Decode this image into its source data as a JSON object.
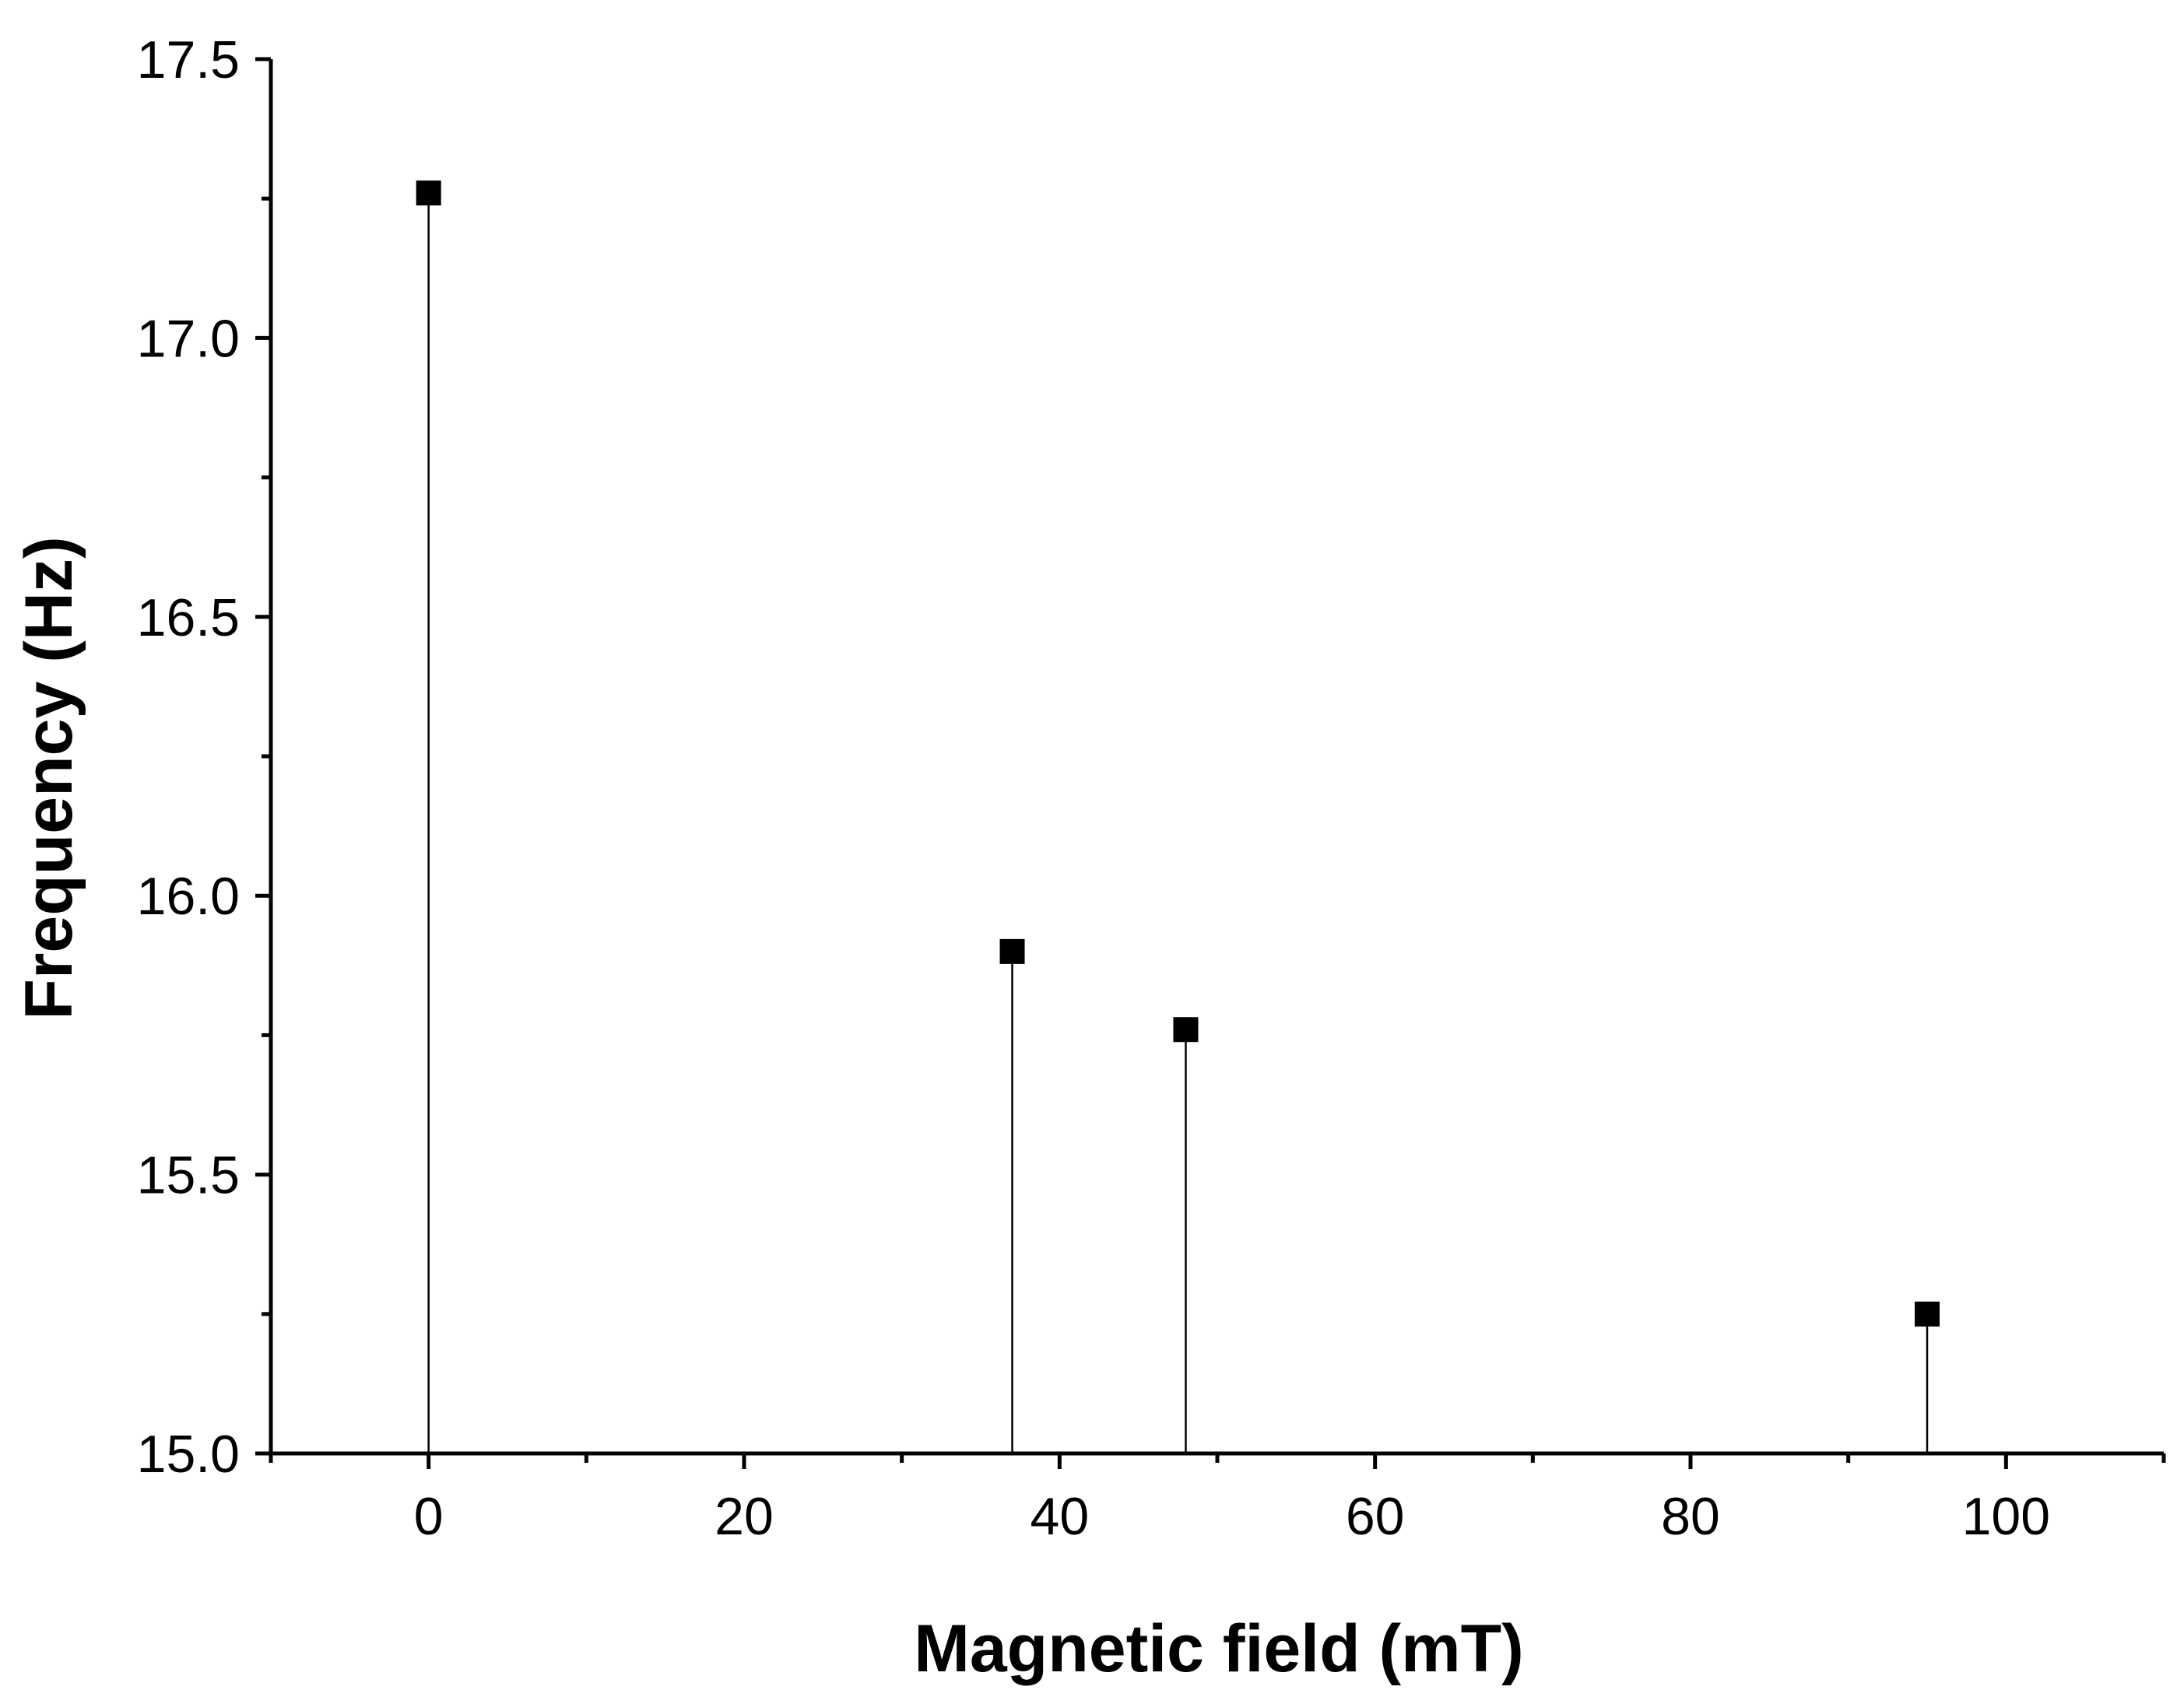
{
  "chart_data": {
    "type": "scatter",
    "style": "stem",
    "marker": "square",
    "xlabel": "Magnetic field (mT)",
    "ylabel": "Frequency (Hz)",
    "xlim": [
      -10,
      110
    ],
    "ylim": [
      15.0,
      17.5
    ],
    "x_ticks": [
      0,
      20,
      40,
      60,
      80,
      100
    ],
    "x_tick_labels": [
      "0",
      "20",
      "40",
      "60",
      "80",
      "100"
    ],
    "x_minor_ticks": [
      -10,
      10,
      30,
      50,
      70,
      90,
      110
    ],
    "y_ticks": [
      15.0,
      15.5,
      16.0,
      16.5,
      17.0,
      17.5
    ],
    "y_tick_labels": [
      "15.0",
      "15.5",
      "16.0",
      "16.5",
      "17.0",
      "17.5"
    ],
    "y_minor_ticks": [
      15.25,
      15.75,
      16.25,
      16.75,
      17.25
    ],
    "grid": false,
    "legend": "none",
    "series": [
      {
        "x": [
          0,
          37,
          48,
          95
        ],
        "y": [
          17.26,
          15.9,
          15.76,
          15.25
        ]
      }
    ],
    "colors": {
      "marker": "#000000",
      "axis": "#000000",
      "stem": "#000000"
    }
  }
}
